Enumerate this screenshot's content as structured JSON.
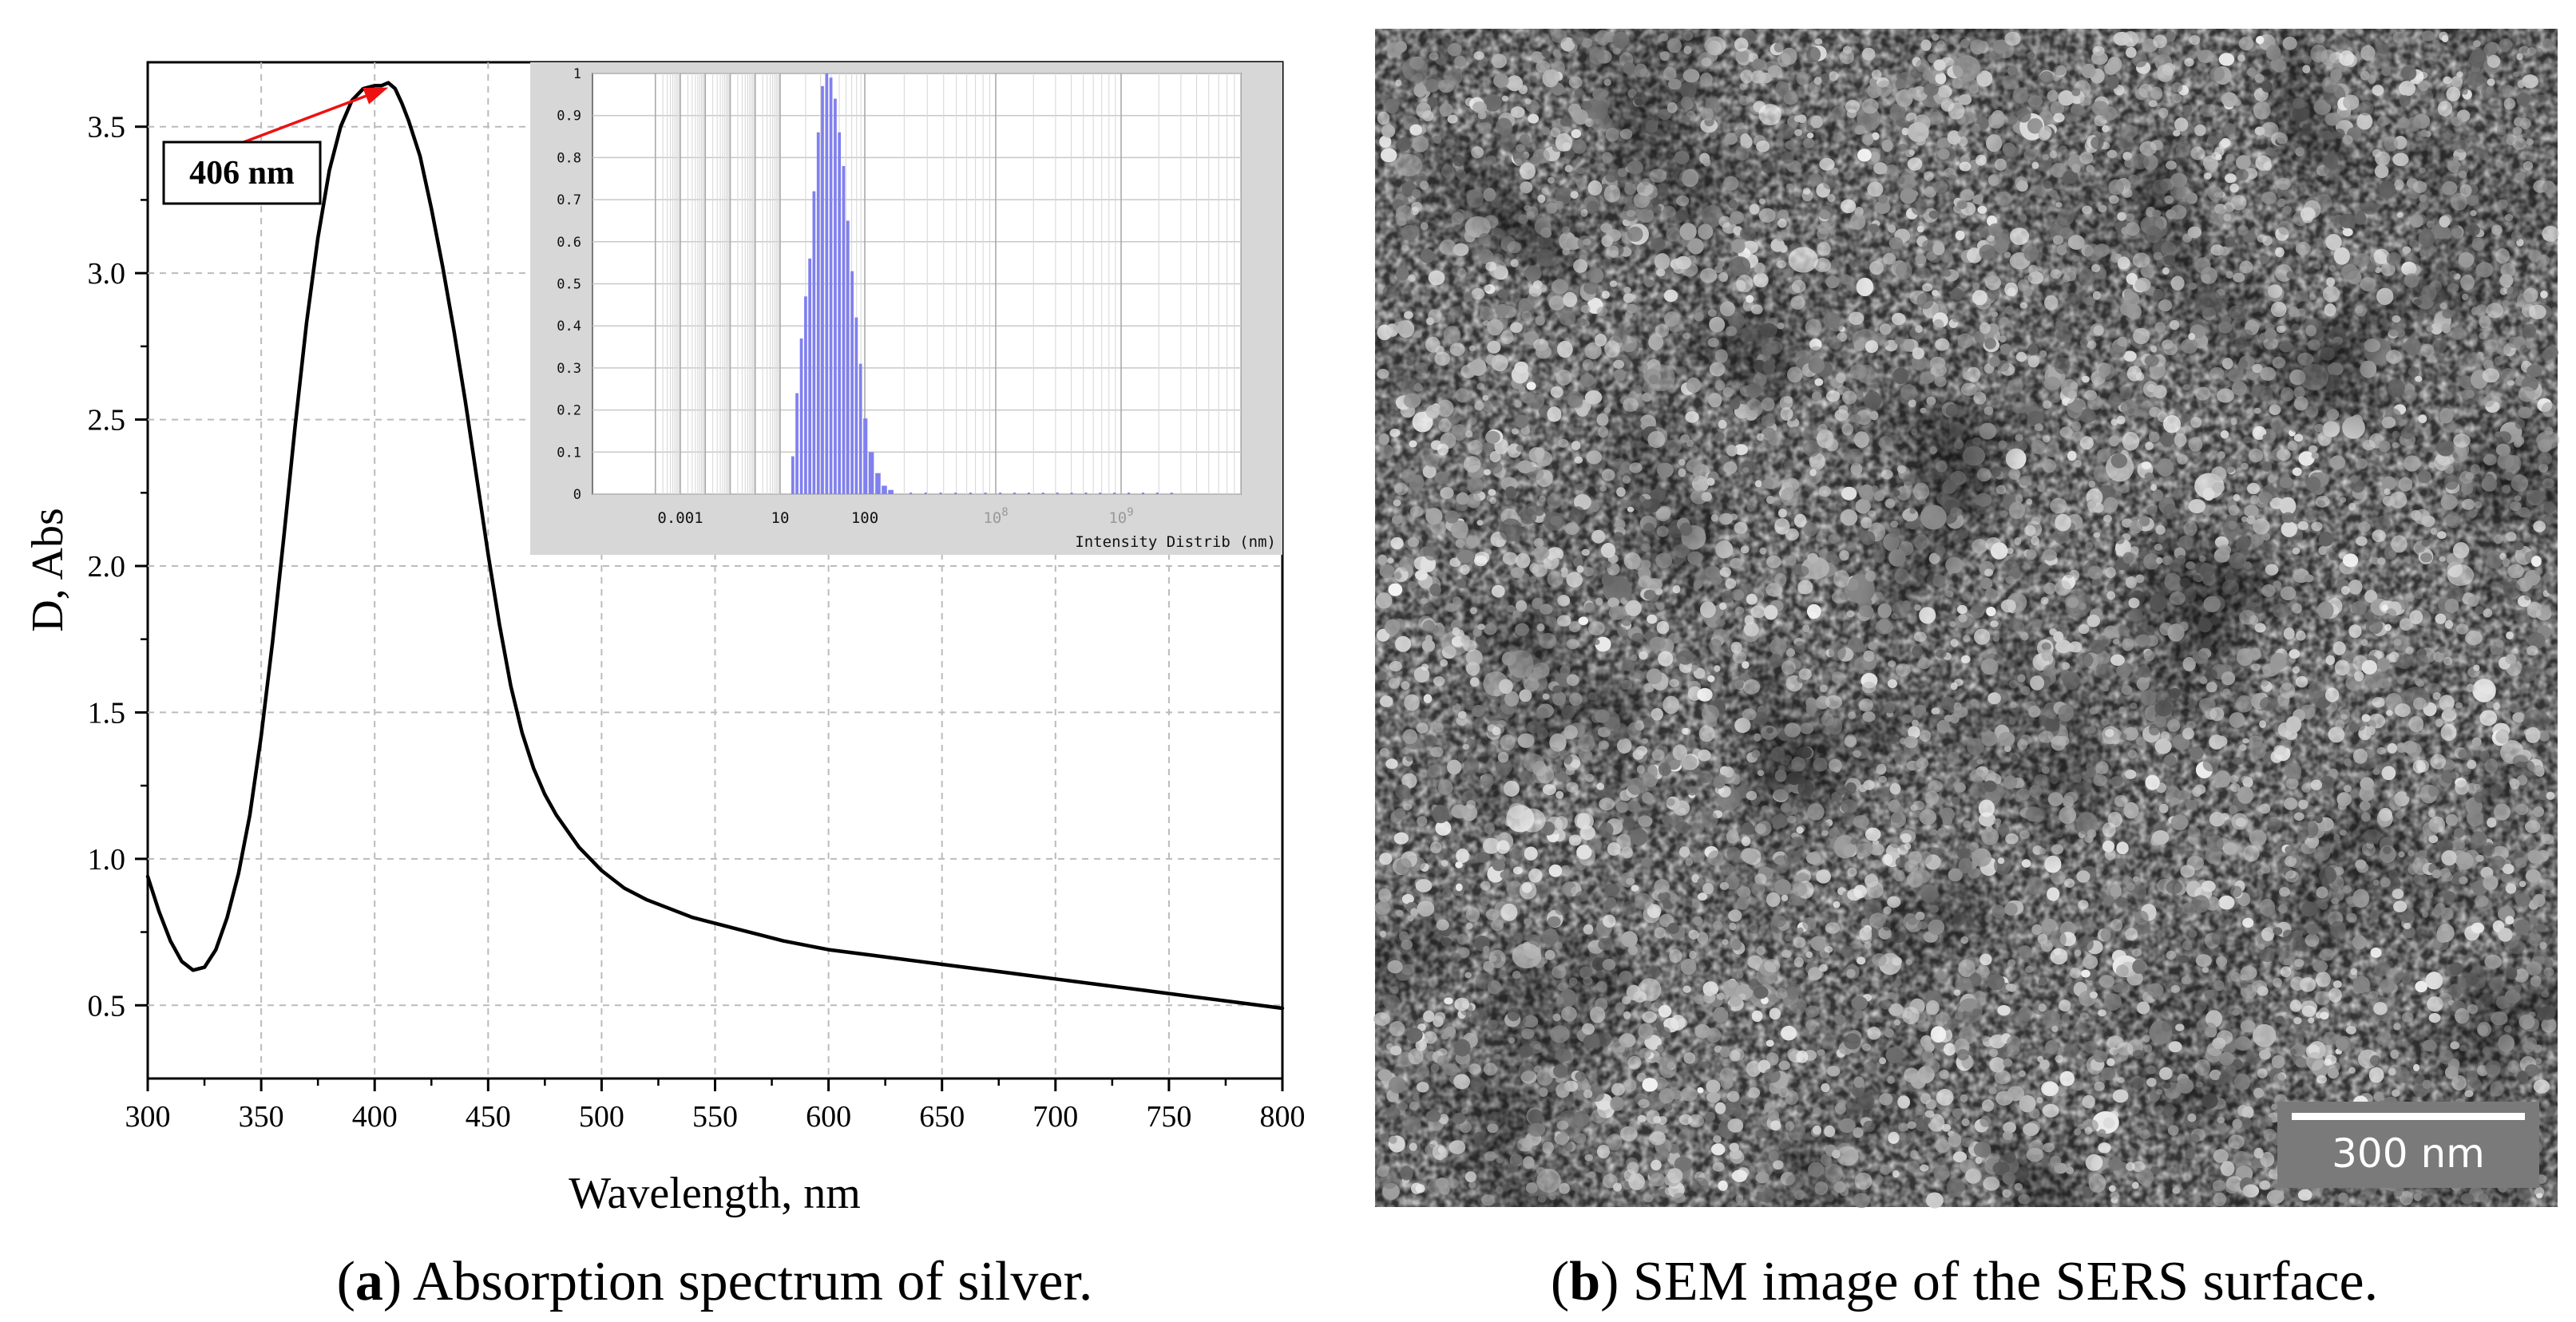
{
  "panel_a": {
    "caption_letter": "a",
    "caption_text": " Absorption spectrum of silver.",
    "peak_label": "406 nm"
  },
  "panel_b": {
    "caption_letter": "b",
    "caption_text": " SEM image of the SERS surface.",
    "scale_bar_label": "300 nm"
  },
  "chart_data": [
    {
      "type": "line",
      "xlabel": "Wavelength, nm",
      "ylabel": "D, Abs",
      "xlim": [
        300,
        800
      ],
      "ylim": [
        0.25,
        3.72
      ],
      "x_ticks": [
        300,
        350,
        400,
        450,
        500,
        550,
        600,
        650,
        700,
        750,
        800
      ],
      "y_ticks": [
        0.5,
        1.0,
        1.5,
        2.0,
        2.5,
        3.0,
        3.5
      ],
      "y_tick_labels": [
        "0.5",
        "1.0",
        "1.5",
        "2.0",
        "2.5",
        "3.0",
        "3.5"
      ],
      "grid": true,
      "annotation": {
        "text": "406 nm",
        "x": 406,
        "y": 3.65
      },
      "series": [
        {
          "x": [
            300,
            305,
            310,
            315,
            320,
            325,
            330,
            335,
            340,
            345,
            350,
            355,
            360,
            365,
            370,
            375,
            380,
            385,
            390,
            395,
            400,
            403,
            406,
            409,
            412,
            415,
            420,
            425,
            430,
            435,
            440,
            445,
            450,
            455,
            460,
            465,
            470,
            475,
            480,
            490,
            500,
            510,
            520,
            530,
            540,
            550,
            560,
            570,
            580,
            590,
            600,
            620,
            640,
            660,
            680,
            700,
            720,
            740,
            760,
            780,
            800
          ],
          "y": [
            0.94,
            0.82,
            0.72,
            0.65,
            0.62,
            0.63,
            0.69,
            0.8,
            0.95,
            1.15,
            1.42,
            1.74,
            2.1,
            2.48,
            2.83,
            3.12,
            3.35,
            3.5,
            3.59,
            3.63,
            3.64,
            3.64,
            3.65,
            3.63,
            3.58,
            3.52,
            3.4,
            3.22,
            3.02,
            2.8,
            2.56,
            2.3,
            2.04,
            1.8,
            1.59,
            1.43,
            1.31,
            1.22,
            1.15,
            1.04,
            0.96,
            0.9,
            0.86,
            0.83,
            0.8,
            0.78,
            0.76,
            0.74,
            0.72,
            0.705,
            0.69,
            0.67,
            0.65,
            0.63,
            0.61,
            0.59,
            0.57,
            0.55,
            0.53,
            0.51,
            0.49
          ]
        }
      ]
    },
    {
      "type": "bar",
      "xlabel": "Intensity Distrib (nm)",
      "x_scale": "log",
      "x_tick_labels": [
        {
          "label": "0.001",
          "value": 0.001
        },
        {
          "label": "10",
          "value": 10
        },
        {
          "label": "100",
          "value": 100
        },
        {
          "label": "10",
          "sup": "8",
          "value": 1000
        },
        {
          "label": "10",
          "sup": "9",
          "value": 10000
        }
      ],
      "ylim": [
        0,
        1
      ],
      "y_ticks": [
        0,
        0.1,
        0.2,
        0.3,
        0.4,
        0.5,
        0.6,
        0.7,
        0.8,
        0.9,
        1
      ],
      "y_tick_labels": [
        "0",
        "0.1",
        "0.2",
        "0.3",
        "0.4",
        "0.5",
        "0.6",
        "0.7",
        "0.8",
        "0.9",
        "1"
      ],
      "grid": true,
      "bar_color": "#8080ee",
      "categories": [
        14.1,
        15.8,
        17.8,
        20.0,
        22.4,
        25.1,
        28.2,
        31.6,
        35.5,
        39.8,
        44.7,
        50.1,
        56.2,
        63.1,
        70.8,
        79.4,
        89.1,
        100,
        112,
        126,
        141,
        158
      ],
      "values": [
        0.09,
        0.24,
        0.37,
        0.47,
        0.56,
        0.72,
        0.86,
        0.97,
        1.0,
        0.99,
        0.94,
        0.86,
        0.78,
        0.65,
        0.53,
        0.42,
        0.31,
        0.18,
        0.1,
        0.05,
        0.02,
        0.01
      ]
    }
  ]
}
